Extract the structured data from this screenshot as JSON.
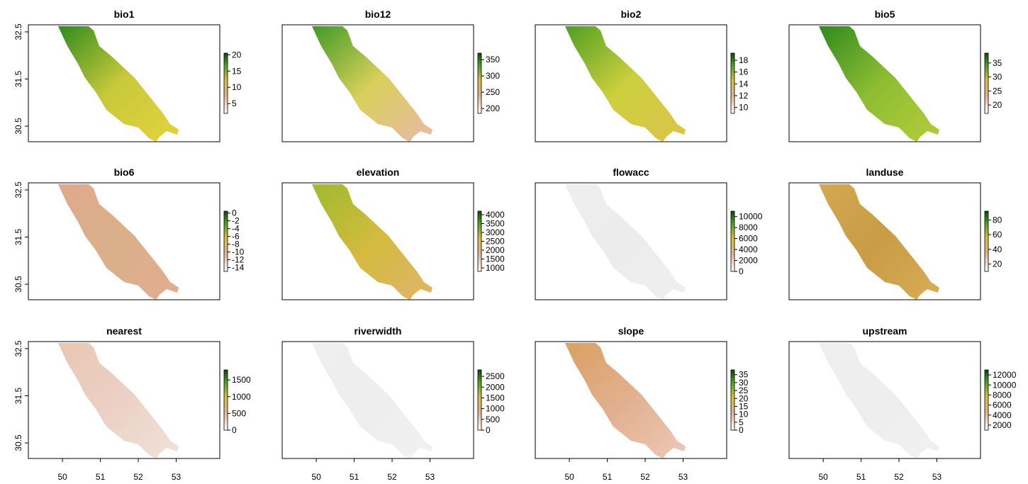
{
  "xlim": [
    49.1,
    54.15
  ],
  "ylim": [
    30.17,
    32.65
  ],
  "xticks": [
    50,
    51,
    52,
    53
  ],
  "yticks": [
    30.5,
    31.5,
    32.5
  ],
  "panels": [
    {
      "title": "bio1",
      "colors": [
        "#2e8b1e",
        "#c9c93a",
        "#e2d23e"
      ],
      "legend_lim": [
        2,
        20.5
      ],
      "legend_ticks": [
        5,
        10,
        15,
        20
      ]
    },
    {
      "title": "bio12",
      "colors": [
        "#3e9a25",
        "#d8d05a",
        "#e8b9a8"
      ],
      "legend_lim": [
        185,
        370
      ],
      "legend_ticks": [
        200,
        250,
        300,
        350
      ]
    },
    {
      "title": "bio2",
      "colors": [
        "#4e9f22",
        "#cdcf3e",
        "#dcc34a"
      ],
      "legend_lim": [
        9,
        19.2
      ],
      "legend_ticks": [
        10,
        12,
        14,
        16,
        18
      ]
    },
    {
      "title": "bio5",
      "colors": [
        "#2f8a1f",
        "#8dbd32",
        "#b6cb3c"
      ],
      "legend_lim": [
        17,
        38.5
      ],
      "legend_ticks": [
        20,
        25,
        30,
        35
      ]
    },
    {
      "title": "bio6",
      "colors": [
        "#e0a98c",
        "#d9b08a",
        "#e3ad90"
      ],
      "legend_lim": [
        -15,
        0.5
      ],
      "legend_ticks": [
        0,
        -2,
        -4,
        -6,
        -8,
        -10,
        -12,
        -14
      ]
    },
    {
      "title": "elevation",
      "colors": [
        "#9fba2e",
        "#d2bb3e",
        "#e0b46a"
      ],
      "legend_lim": [
        800,
        4200
      ],
      "legend_ticks": [
        1000,
        1500,
        2000,
        2500,
        3000,
        3500,
        4000
      ]
    },
    {
      "title": "flowacc",
      "colors": [
        "#eeeeee",
        "#ececec",
        "#efefef"
      ],
      "legend_lim": [
        0,
        11000
      ],
      "legend_ticks": [
        0,
        2000,
        4000,
        6000,
        8000,
        10000
      ]
    },
    {
      "title": "landuse",
      "colors": [
        "#d2a850",
        "#c99c45",
        "#d7ad55"
      ],
      "legend_lim": [
        10,
        92
      ],
      "legend_ticks": [
        20,
        40,
        60,
        80
      ]
    },
    {
      "title": "nearest",
      "colors": [
        "#e8c6b4",
        "#ecd0c4",
        "#efe2da"
      ],
      "legend_lim": [
        0,
        1800
      ],
      "legend_ticks": [
        0,
        500,
        1000,
        1500
      ]
    },
    {
      "title": "riverwidth",
      "colors": [
        "#efefef",
        "#eeeeee",
        "#f0f0f0"
      ],
      "legend_lim": [
        0,
        2800
      ],
      "legend_ticks": [
        0,
        500,
        1000,
        1500,
        2000,
        2500
      ]
    },
    {
      "title": "slope",
      "colors": [
        "#d9a060",
        "#e2b090",
        "#ecc8b8"
      ],
      "legend_lim": [
        0,
        38
      ],
      "legend_ticks": [
        0,
        5,
        10,
        15,
        20,
        25,
        30,
        35
      ]
    },
    {
      "title": "upstream",
      "colors": [
        "#efefef",
        "#eeeeee",
        "#f0f0f0"
      ],
      "legend_lim": [
        1000,
        13000
      ],
      "legend_ticks": [
        2000,
        4000,
        6000,
        8000,
        10000,
        12000
      ]
    }
  ]
}
